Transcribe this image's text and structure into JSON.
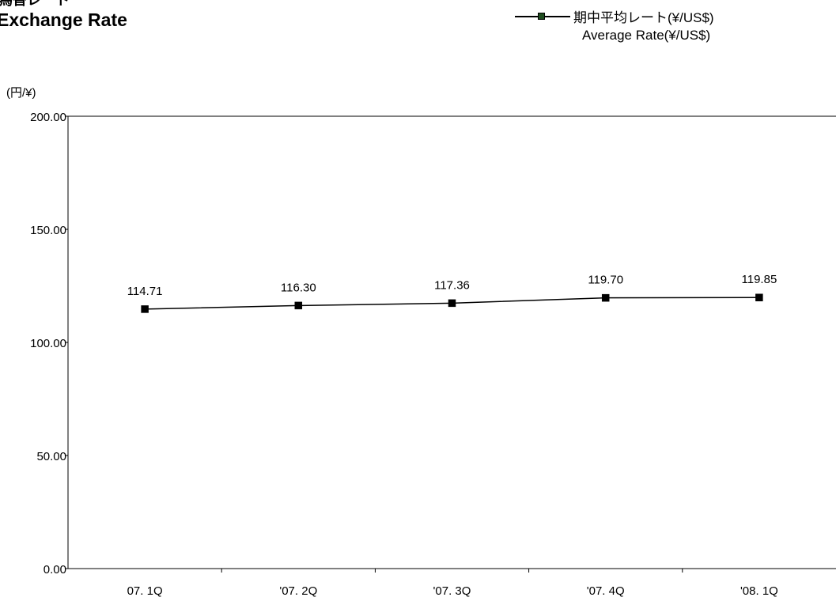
{
  "title_jp": "為替レート",
  "title_en": "Exchange Rate",
  "unit_label": "(円/¥)",
  "legend": {
    "label_jp": "期中平均レート(¥/US$)",
    "label_en": "Average Rate(¥/US$)"
  },
  "chart_data": {
    "type": "line",
    "categories": [
      "07. 1Q",
      "'07. 2Q",
      "'07. 3Q",
      "'07. 4Q",
      "'08. 1Q"
    ],
    "series": [
      {
        "name": "期中平均レート(¥/US$) Average Rate(¥/US$)",
        "values": [
          114.71,
          116.3,
          117.36,
          119.7,
          119.85
        ],
        "color": "#000000",
        "marker_color": "#1f4d1f"
      }
    ],
    "data_labels": [
      "114.71",
      "116.30",
      "117.36",
      "119.70",
      "119.85"
    ],
    "yticks": [
      "0.00",
      "50.00",
      "100.00",
      "150.00",
      "200.00"
    ],
    "ylim": [
      0,
      200
    ],
    "grid": false,
    "legend_position": "top-right"
  }
}
